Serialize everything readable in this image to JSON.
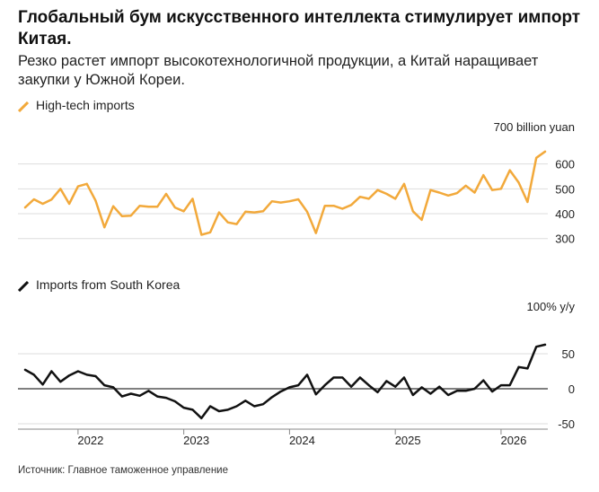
{
  "header": {
    "title": "Глобальный бум искусственного интеллекта стимулирует импорт Китая.",
    "subtitle": "Резко растет импорт высокотехнологичной продукции, а Китай наращивает закупки у Южной Кореи."
  },
  "source": "Источник: Главное таможенное управление",
  "colors": {
    "hightech": "#f2a93b",
    "korea": "#111111",
    "grid": "#dddddd",
    "zero": "#555555"
  },
  "chart_data": [
    {
      "type": "line",
      "legend": "High-tech imports",
      "unit_label": "700 billion yuan",
      "yticks": [
        300,
        400,
        500,
        600
      ],
      "ylim": [
        270,
        700
      ],
      "x_tick_labels": [
        "2022",
        "2023",
        "2024",
        "2025",
        "2026"
      ],
      "x_start": "2021-07",
      "series": [
        {
          "name": "High-tech imports",
          "values": [
            425,
            458,
            440,
            457,
            500,
            440,
            510,
            520,
            452,
            345,
            430,
            390,
            392,
            432,
            428,
            428,
            480,
            425,
            410,
            460,
            315,
            325,
            405,
            365,
            358,
            408,
            405,
            410,
            450,
            445,
            450,
            458,
            408,
            322,
            432,
            432,
            420,
            435,
            468,
            460,
            495,
            480,
            460,
            520,
            410,
            375,
            495,
            485,
            473,
            483,
            513,
            485,
            555,
            495,
            500,
            575,
            525,
            447,
            625,
            650
          ]
        }
      ]
    },
    {
      "type": "line",
      "legend": "Imports from South Korea",
      "unit_label": "100% y/y",
      "yticks": [
        -50,
        0,
        50
      ],
      "ylim": [
        -55,
        105
      ],
      "x_tick_labels": [
        "2022",
        "2023",
        "2024",
        "2025",
        "2026"
      ],
      "x_start": "2021-07",
      "series": [
        {
          "name": "Imports from South Korea",
          "values": [
            27,
            20,
            6,
            25,
            10,
            19,
            25,
            20,
            18,
            5,
            2,
            -11,
            -7,
            -10,
            -3,
            -11,
            -13,
            -18,
            -27,
            -30,
            -42,
            -25,
            -32,
            -30,
            -25,
            -17,
            -25,
            -22,
            -12,
            -4,
            2,
            5,
            20,
            -8,
            5,
            16,
            16,
            3,
            16,
            5,
            -5,
            11,
            3,
            16,
            -9,
            2,
            -7,
            3,
            -9,
            -3,
            -3,
            0,
            12,
            -4,
            5,
            5,
            31,
            29,
            60,
            63
          ]
        }
      ]
    }
  ]
}
